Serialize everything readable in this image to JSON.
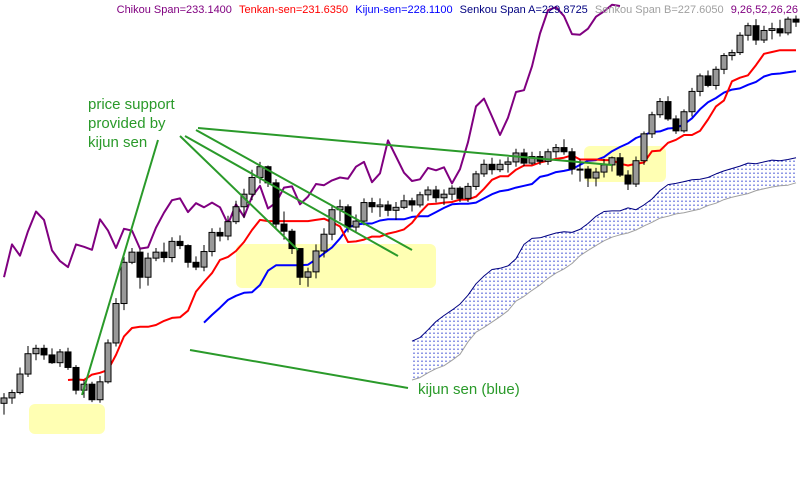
{
  "header": {
    "chikou": "Chikou Span=233.1400",
    "tenkan": "Tenkan-sen=231.6350",
    "kijun": "Kijun-sen=228.1100",
    "senkou_a": "Senkou Span A=229.8725",
    "senkou_b": "Senkou Span B=227.6050",
    "params": "9,26,52,26,26"
  },
  "annotations": {
    "support_line1": "price support",
    "support_line2": "provided by",
    "support_line3": "kijun sen",
    "kijun_label": "kijun sen (blue)"
  },
  "colors": {
    "chikou": "#800080",
    "tenkan": "#ff0000",
    "kijun": "#0000ff",
    "senkou_a": "#000080",
    "senkou_b": "#a0a0a0",
    "cloud_dots": "#2233cc",
    "annotation": "#2a9a2a",
    "highlight": "#ffff99"
  },
  "chart_data": {
    "type": "line",
    "ylim": [
      160,
      240
    ],
    "bars": 100,
    "grid": false,
    "candles": [
      [
        172.5,
        174.2,
        170.6,
        173.4
      ],
      [
        173.4,
        174.8,
        172.4,
        174.3
      ],
      [
        174.3,
        178.5,
        174.0,
        177.4
      ],
      [
        177.4,
        182.1,
        176.9,
        180.8
      ],
      [
        180.8,
        182.3,
        179.7,
        181.7
      ],
      [
        181.7,
        182.3,
        179.8,
        180.6
      ],
      [
        180.6,
        181.7,
        179.1,
        179.3
      ],
      [
        179.3,
        181.6,
        178.6,
        181.1
      ],
      [
        181.1,
        181.8,
        178.1,
        178.5
      ],
      [
        178.5,
        178.9,
        174.0,
        174.7
      ],
      [
        174.7,
        176.4,
        173.4,
        175.7
      ],
      [
        175.7,
        176.1,
        172.7,
        173.1
      ],
      [
        173.1,
        177.1,
        172.6,
        176.1
      ],
      [
        176.1,
        183.2,
        175.8,
        182.6
      ],
      [
        182.6,
        190.1,
        182.0,
        189.2
      ],
      [
        189.2,
        197.0,
        188.1,
        196.1
      ],
      [
        196.1,
        198.5,
        195.8,
        197.8
      ],
      [
        197.8,
        198.3,
        191.7,
        193.6
      ],
      [
        193.6,
        197.7,
        192.2,
        196.8
      ],
      [
        196.8,
        198.5,
        196.3,
        197.8
      ],
      [
        197.8,
        199.4,
        196.1,
        196.9
      ],
      [
        196.9,
        200.3,
        196.1,
        199.6
      ],
      [
        199.6,
        200.6,
        198.3,
        198.9
      ],
      [
        198.9,
        199.1,
        195.2,
        196.1
      ],
      [
        196.1,
        197.1,
        194.8,
        195.3
      ],
      [
        195.3,
        199.0,
        194.6,
        197.9
      ],
      [
        197.9,
        201.8,
        197.1,
        201.1
      ],
      [
        201.1,
        201.9,
        199.6,
        200.5
      ],
      [
        200.5,
        203.9,
        199.8,
        202.9
      ],
      [
        202.9,
        206.4,
        202.5,
        205.4
      ],
      [
        205.4,
        208.4,
        203.5,
        207.5
      ],
      [
        207.5,
        211.6,
        206.5,
        210.3
      ],
      [
        210.3,
        212.9,
        209.3,
        212.1
      ],
      [
        212.1,
        212.3,
        208.7,
        209.4
      ],
      [
        209.4,
        210.0,
        201.8,
        202.5
      ],
      [
        202.5,
        204.6,
        199.9,
        201.3
      ],
      [
        201.3,
        201.7,
        197.5,
        198.4
      ],
      [
        198.4,
        198.4,
        192.3,
        193.6
      ],
      [
        193.6,
        195.2,
        192.0,
        194.5
      ],
      [
        194.5,
        199.1,
        193.4,
        198.0
      ],
      [
        198.0,
        201.8,
        196.9,
        200.8
      ],
      [
        200.8,
        205.6,
        199.8,
        204.9
      ],
      [
        204.9,
        206.6,
        203.0,
        205.4
      ],
      [
        205.4,
        205.8,
        201.1,
        202.0
      ],
      [
        202.0,
        204.1,
        201.1,
        203.0
      ],
      [
        203.0,
        206.8,
        202.3,
        206.1
      ],
      [
        206.1,
        206.9,
        204.4,
        205.4
      ],
      [
        205.4,
        206.8,
        203.7,
        205.7
      ],
      [
        205.7,
        206.4,
        203.8,
        204.8
      ],
      [
        204.8,
        206.2,
        203.2,
        205.3
      ],
      [
        205.3,
        207.4,
        205.0,
        206.4
      ],
      [
        206.4,
        206.9,
        204.6,
        205.7
      ],
      [
        205.7,
        207.9,
        205.3,
        207.4
      ],
      [
        207.4,
        208.8,
        206.4,
        208.2
      ],
      [
        208.2,
        208.9,
        206.1,
        206.9
      ],
      [
        206.9,
        208.3,
        205.7,
        207.5
      ],
      [
        207.5,
        209.0,
        206.5,
        208.5
      ],
      [
        208.5,
        208.8,
        206.2,
        206.8
      ],
      [
        206.8,
        209.4,
        206.2,
        208.8
      ],
      [
        208.8,
        211.4,
        208.2,
        210.9
      ],
      [
        210.9,
        213.3,
        210.4,
        212.5
      ],
      [
        212.5,
        213.6,
        210.8,
        211.6
      ],
      [
        211.6,
        213.3,
        211.2,
        212.5
      ],
      [
        212.5,
        213.7,
        211.1,
        212.9
      ],
      [
        212.9,
        215.1,
        212.1,
        214.4
      ],
      [
        214.4,
        215.1,
        212.2,
        212.7
      ],
      [
        212.7,
        214.6,
        212.4,
        213.8
      ],
      [
        213.8,
        214.7,
        212.4,
        213.0
      ],
      [
        213.0,
        215.1,
        212.4,
        214.6
      ],
      [
        214.6,
        215.9,
        213.6,
        215.3
      ],
      [
        215.3,
        216.7,
        214.1,
        214.6
      ],
      [
        214.6,
        215.2,
        210.8,
        211.7
      ],
      [
        211.7,
        213.3,
        209.6,
        211.7
      ],
      [
        211.7,
        212.2,
        208.7,
        210.2
      ],
      [
        210.2,
        211.9,
        208.8,
        211.2
      ],
      [
        211.2,
        213.4,
        210.3,
        212.4
      ],
      [
        212.4,
        213.8,
        211.3,
        213.6
      ],
      [
        213.6,
        214.4,
        210.4,
        210.7
      ],
      [
        210.7,
        211.5,
        208.2,
        209.2
      ],
      [
        209.2,
        213.8,
        208.7,
        213.1
      ],
      [
        213.1,
        218.0,
        212.4,
        217.6
      ],
      [
        217.6,
        221.3,
        216.9,
        220.8
      ],
      [
        220.8,
        223.6,
        220.3,
        223.0
      ],
      [
        223.0,
        223.9,
        219.8,
        220.1
      ],
      [
        220.1,
        220.7,
        217.6,
        218.1
      ],
      [
        218.1,
        221.7,
        217.8,
        221.3
      ],
      [
        221.3,
        225.3,
        220.5,
        224.7
      ],
      [
        224.7,
        227.7,
        223.9,
        227.3
      ],
      [
        227.3,
        228.2,
        225.4,
        225.7
      ],
      [
        225.7,
        228.9,
        225.0,
        228.4
      ],
      [
        228.4,
        231.1,
        227.6,
        230.7
      ],
      [
        230.7,
        231.7,
        229.9,
        231.2
      ],
      [
        231.2,
        234.6,
        230.8,
        234.1
      ],
      [
        234.1,
        236.2,
        233.2,
        235.7
      ],
      [
        235.7,
        236.8,
        232.5,
        233.3
      ],
      [
        233.3,
        235.7,
        232.8,
        234.9
      ],
      [
        234.9,
        236.2,
        233.4,
        235.2
      ],
      [
        235.2,
        236.7,
        233.9,
        234.5
      ],
      [
        234.5,
        237.2,
        234.1,
        236.8
      ],
      [
        236.8,
        237.4,
        235.5,
        236.3
      ]
    ],
    "series": [
      {
        "name": "Tenkan-sen",
        "values": [
          null,
          null,
          null,
          null,
          null,
          null,
          null,
          null,
          176.4,
          176.5,
          176.4,
          177.3,
          177.6,
          178.1,
          180.6,
          183.7,
          185.1,
          185.3,
          185.3,
          185.6,
          186.3,
          186.8,
          186.9,
          188.0,
          191.2,
          192.8,
          194.3,
          196.5,
          197.0,
          198.0,
          199.5,
          201.5,
          203.2,
          203.0,
          203.0,
          203.0,
          203.0,
          203.0,
          203.0,
          203.2,
          203.4,
          202.8,
          202.1,
          199.5,
          199.6,
          199.9,
          200.4,
          200.4,
          200.9,
          201.2,
          201.6,
          202.7,
          204.4,
          205.8,
          205.9,
          206.1,
          206.2,
          206.6,
          206.6,
          207.1,
          208.4,
          209.9,
          210.5,
          210.5,
          211.6,
          212.3,
          212.3,
          212.8,
          213.1,
          213.4,
          213.6,
          214.0,
          213.3,
          213.3,
          213.3,
          213.2,
          213.2,
          212.6,
          212.3,
          212.6,
          212.8,
          214.7,
          214.8,
          216.1,
          216.6,
          217.4,
          217.4,
          218.1,
          220.0,
          222.2,
          223.2,
          226.4,
          227.0,
          227.4,
          229.1,
          231.0,
          231.3,
          231.6,
          231.6,
          231.6
        ]
      },
      {
        "name": "Kijun-sen",
        "values": [
          null,
          null,
          null,
          null,
          null,
          null,
          null,
          null,
          null,
          null,
          null,
          null,
          null,
          null,
          null,
          null,
          null,
          null,
          null,
          null,
          null,
          null,
          null,
          null,
          null,
          186.0,
          187.3,
          188.5,
          189.8,
          190.5,
          191.0,
          191.1,
          192.3,
          194.7,
          195.6,
          195.6,
          195.6,
          195.6,
          195.7,
          196.6,
          197.6,
          198.6,
          200.1,
          201.9,
          202.4,
          202.6,
          202.6,
          203.1,
          203.3,
          203.3,
          203.3,
          203.7,
          203.8,
          203.8,
          204.5,
          205.2,
          205.8,
          205.9,
          205.9,
          206.1,
          206.8,
          207.5,
          208.0,
          208.2,
          208.6,
          208.9,
          209.2,
          210.4,
          210.7,
          211.2,
          211.4,
          211.7,
          212.4,
          213.1,
          213.2,
          213.7,
          214.7,
          215.4,
          216.0,
          216.9,
          217.4,
          217.9,
          218.0,
          218.5,
          218.6,
          219.2,
          220.2,
          221.7,
          222.9,
          223.6,
          224.5,
          225.0,
          225.2,
          225.8,
          226.3,
          227.2,
          227.6,
          227.7,
          227.9,
          228.1
        ]
      },
      {
        "name": "Chikou Span",
        "values": [
          193.6,
          199.1,
          197.2,
          201.3,
          204.6,
          203.2,
          198.1,
          196.3,
          195.3,
          199.1,
          198.7,
          198.2,
          203.3,
          201.4,
          198.5,
          201.7,
          201.4,
          198.4,
          198.6,
          201.9,
          204.4,
          206.5,
          206.8,
          204.5,
          206.0,
          205.3,
          206.1,
          205.3,
          202.5,
          205.8,
          203.7,
          207.1,
          208.9,
          205.1,
          206.1,
          208.6,
          208.8,
          205.8,
          207.1,
          209.2,
          209.0,
          209.8,
          210.3,
          210.1,
          212.1,
          212.9,
          209.5,
          211.0,
          216.5,
          213.8,
          211.1,
          209.7,
          210.0,
          211.9,
          211.5,
          212.0,
          209.3,
          211.7,
          216.2,
          222.2,
          223.5,
          220.5,
          217.4,
          220.3,
          224.6,
          224.9,
          228.9,
          234.4,
          238.3,
          238.8,
          237.3,
          234.3,
          234.2,
          235.2,
          237.2,
          238.1,
          239.2,
          239.0,
          null,
          null,
          null,
          null,
          null,
          null,
          null,
          null,
          null,
          null,
          null,
          null,
          null,
          null,
          null,
          null,
          null,
          null,
          null,
          null,
          null,
          null
        ]
      },
      {
        "name": "Senkou Span A",
        "values": [
          null,
          null,
          null,
          null,
          null,
          null,
          null,
          null,
          null,
          null,
          null,
          null,
          null,
          null,
          null,
          null,
          null,
          null,
          null,
          null,
          null,
          null,
          null,
          null,
          null,
          null,
          null,
          null,
          null,
          null,
          null,
          null,
          null,
          null,
          null,
          null,
          null,
          null,
          null,
          null,
          null,
          null,
          null,
          null,
          null,
          null,
          null,
          null,
          null,
          null,
          null,
          182.9,
          183.5,
          184.8,
          186.2,
          187.2,
          188.1,
          189.1,
          190.6,
          192.5,
          193.8,
          194.9,
          195.1,
          195.5,
          196.7,
          199.1,
          200.1,
          200.2,
          200.6,
          201.0,
          201.2,
          201.1,
          201.6,
          202.6,
          203.8,
          204.6,
          204.7,
          204.7,
          205.2,
          204.9,
          205.7,
          206.7,
          208.1,
          209.1,
          209.3,
          209.6,
          209.9,
          210.0,
          210.3,
          210.9,
          211.4,
          211.8,
          212.2,
          212.7,
          212.6,
          212.9,
          213.2,
          213.1,
          213.3,
          213.6
        ]
      },
      {
        "name": "Senkou Span B",
        "values": [
          null,
          null,
          null,
          null,
          null,
          null,
          null,
          null,
          null,
          null,
          null,
          null,
          null,
          null,
          null,
          null,
          null,
          null,
          null,
          null,
          null,
          null,
          null,
          null,
          null,
          null,
          null,
          null,
          null,
          null,
          null,
          null,
          null,
          null,
          null,
          null,
          null,
          null,
          null,
          null,
          null,
          null,
          null,
          null,
          null,
          null,
          null,
          null,
          null,
          null,
          null,
          176.4,
          176.8,
          177.6,
          178.3,
          178.8,
          179.7,
          180.7,
          182.8,
          184.4,
          185.2,
          186.1,
          187.0,
          188.0,
          189.6,
          190.4,
          191.4,
          192.3,
          193.4,
          194.3,
          195.0,
          195.9,
          197.2,
          198.1,
          198.9,
          199.7,
          200.3,
          200.7,
          201.0,
          201.5,
          202.2,
          202.8,
          203.5,
          203.8,
          204.2,
          204.4,
          204.7,
          205.0,
          205.6,
          206.0,
          206.6,
          207.0,
          207.3,
          207.6,
          208.1,
          208.4,
          208.7,
          208.9,
          209.0,
          209.4
        ]
      }
    ]
  }
}
